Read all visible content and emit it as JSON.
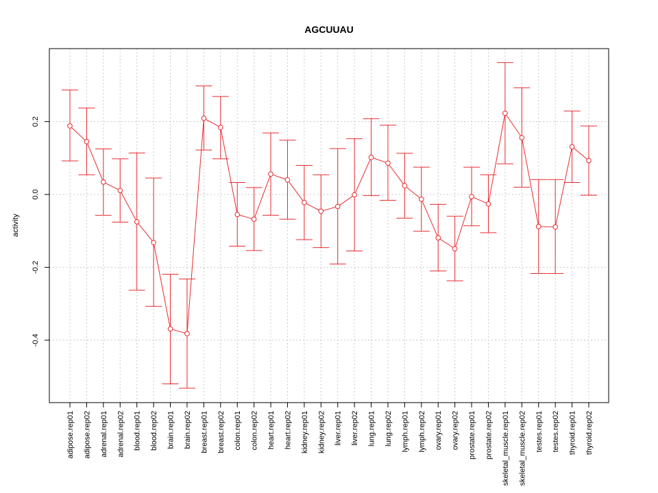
{
  "chart_data": {
    "type": "line",
    "title": "AGCUUAU",
    "xlabel": "",
    "ylabel": "activity",
    "ylim": [
      -0.58,
      0.4
    ],
    "yticks": [
      -0.4,
      -0.2,
      0.0,
      0.2
    ],
    "ytick_labels": [
      "-0.4",
      "-0.2",
      "0.0",
      "0.2"
    ],
    "grid": true,
    "colors": {
      "series": "#e8282d",
      "grid": "#c8c8c8",
      "axis": "#000000"
    },
    "categories": [
      "adipose.rep01",
      "adipose.rep02",
      "adrenal.rep01",
      "adrenal.rep02",
      "blood.rep01",
      "blood.rep02",
      "brain.rep01",
      "brain.rep02",
      "breast.rep01",
      "breast.rep02",
      "colon.rep01",
      "colon.rep02",
      "heart.rep01",
      "heart.rep02",
      "kidney.rep01",
      "kidney.rep02",
      "liver.rep01",
      "liver.rep02",
      "lung.rep01",
      "lung.rep02",
      "lymph.rep01",
      "lymph.rep02",
      "ovary.rep01",
      "ovary.rep02",
      "prostate.rep01",
      "prostate.rep02",
      "skeletal_muscle.rep01",
      "skeletal_muscle.rep02",
      "testes.rep01",
      "testes.rep02",
      "thyroid.rep01",
      "thyroid.rep02"
    ],
    "series": [
      {
        "name": "activity",
        "values": [
          0.188,
          0.145,
          0.034,
          0.011,
          -0.075,
          -0.132,
          -0.369,
          -0.382,
          0.209,
          0.184,
          -0.055,
          -0.068,
          0.056,
          0.04,
          -0.022,
          -0.046,
          -0.033,
          -0.001,
          0.102,
          0.086,
          0.024,
          -0.013,
          -0.119,
          -0.149,
          -0.006,
          -0.026,
          0.223,
          0.156,
          -0.088,
          -0.089,
          0.131,
          0.093
        ],
        "upper": [
          0.287,
          0.237,
          0.125,
          0.098,
          0.114,
          0.045,
          -0.219,
          -0.232,
          0.298,
          0.269,
          0.033,
          0.019,
          0.169,
          0.149,
          0.08,
          0.054,
          0.126,
          0.153,
          0.208,
          0.19,
          0.113,
          0.075,
          -0.027,
          -0.06,
          0.075,
          0.054,
          0.362,
          0.293,
          0.041,
          0.041,
          0.229,
          0.188
        ],
        "lower": [
          0.092,
          0.054,
          -0.057,
          -0.076,
          -0.263,
          -0.307,
          -0.52,
          -0.532,
          0.122,
          0.098,
          -0.142,
          -0.154,
          -0.057,
          -0.068,
          -0.124,
          -0.146,
          -0.191,
          -0.155,
          -0.003,
          -0.016,
          -0.065,
          -0.101,
          -0.21,
          -0.237,
          -0.086,
          -0.105,
          0.084,
          0.02,
          -0.217,
          -0.217,
          0.033,
          -0.002
        ]
      }
    ]
  }
}
